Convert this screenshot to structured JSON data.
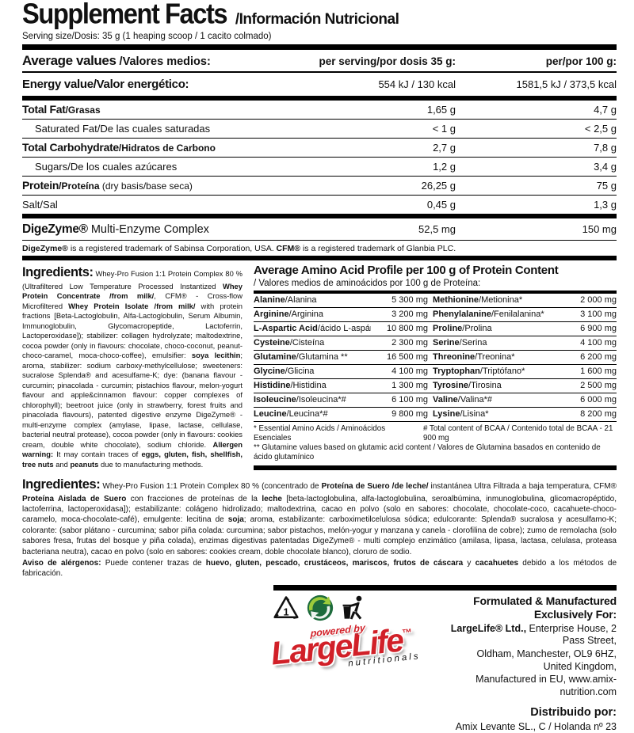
{
  "header": {
    "title": "Supplement Facts",
    "subtitle": "/Información Nutricional",
    "serving": "Serving size/Dosis: 35 g (1 heaping scoop / 1 cacito colmado)"
  },
  "nutrition": {
    "avg_en": "Average values",
    "avg_es": " /Valores medios:",
    "col_serving": "per serving/por dosis 35 g:",
    "col_per100": "per/por 100 g:",
    "energy": {
      "label": "Energy value/Valor energético:",
      "serv": "554 kJ / 130 kcal",
      "per100": "1581,5 kJ / 373,5 kcal"
    },
    "rows": [
      {
        "en": "Total Fat",
        "es": "/Grasas",
        "note": "",
        "serv": "1,65 g",
        "per100": "4,7 g",
        "bold": true,
        "indent": false
      },
      {
        "en": "Saturated Fat",
        "es": "/De las cuales saturadas",
        "note": "",
        "serv": "< 1 g",
        "per100": "< 2,5 g",
        "bold": false,
        "indent": true
      },
      {
        "en": "Total Carbohydrate",
        "es": "/Hidratos de Carbono",
        "note": "",
        "serv": "2,7 g",
        "per100": "7,8 g",
        "bold": true,
        "indent": false
      },
      {
        "en": "Sugars",
        "es": "/De los cuales azúcares",
        "note": "",
        "serv": "1,2 g",
        "per100": "3,4 g",
        "bold": false,
        "indent": true
      },
      {
        "en": "Protein",
        "es": "/Proteína",
        "note": " (dry basis/base seca)",
        "serv": "26,25 g",
        "per100": "75 g",
        "bold": true,
        "indent": false
      },
      {
        "en": "Salt",
        "es": "/Sal",
        "note": "",
        "serv": "0,45 g",
        "per100": "1,3 g",
        "bold": false,
        "indent": false
      }
    ],
    "digezyme": {
      "bold": "DigeZyme®",
      "rest": " Multi-Enzyme Complex",
      "serv": "52,5 mg",
      "per100": "150 mg"
    },
    "trademark_segments": [
      {
        "t": "DigeZyme®",
        "b": true
      },
      {
        "t": " is a registered trademark of Sabinsa Corporation, USA. ",
        "b": false
      },
      {
        "t": "CFM®",
        "b": true
      },
      {
        "t": " is a registered trademark of Glanbia PLC.",
        "b": false
      }
    ]
  },
  "ingredients_en": {
    "heading": "Ingredients:",
    "segments": [
      {
        "t": " Whey-Pro Fusion 1:1 Protein Complex 80 % (Ultrafiltered Low Temperature Processed Instantized ",
        "b": false
      },
      {
        "t": "Whey Protein Concentrate /from milk/",
        "b": true
      },
      {
        "t": ", CFM® - Cross-flow Microfiltered ",
        "b": false
      },
      {
        "t": "Whey Protein Isolate /from milk/",
        "b": true
      },
      {
        "t": " with protein fractions [Beta-Lactoglobulin, Alfa-Lactoglobulin, Serum Albumin, Immunoglobulin, Glycomacropeptide, Lactoferrin, Lactoperoxidase]); stabilizer: collagen hydrolyzate; maltodextrine, cocoa powder (only in flavours: chocolate, choco-coconut, peanut-choco-caramel, moca-choco-coffee), emulsifier: ",
        "b": false
      },
      {
        "t": "soya lecithin",
        "b": true
      },
      {
        "t": "; aroma, stabilizer: sodium carboxy-methylcellulose; sweeteners: sucralose Splenda® and acesulfame-K; dye: (banana flavour - curcumin; pinacolada - curcumin; pistachios flavour, melon-yogurt flavour and apple&cinnamon flavour: copper complexes of chlorophyll); beetroot juice (only in strawberry, forest fruits and pinacolada flavours), patented digestive enzyme DigeZyme® - multi-enzyme complex (amylase, lipase, lactase, cellulase, bacterial neutral protease), cocoa powder (only in flavours: cookies cream, double white chocolate), sodium chloride. ",
        "b": false
      },
      {
        "t": "Allergen warning:",
        "b": true
      },
      {
        "t": " It may contain traces of ",
        "b": false
      },
      {
        "t": "eggs, gluten, fish, shellfish, tree nuts",
        "b": true
      },
      {
        "t": " and ",
        "b": false
      },
      {
        "t": "peanuts",
        "b": true
      },
      {
        "t": " due to manufacturing methods.",
        "b": false
      }
    ]
  },
  "amino": {
    "title": "Average Amino Acid Profile per 100 g of Protein Content",
    "subtitle": "/ Valores medios de aminoácidos  por 100 g de Proteína:",
    "rows": [
      {
        "l_en": "Alanine",
        "l_es": "/Alanina",
        "l_val": "5 300 mg",
        "r_en": "Methionine",
        "r_es": "/Metionina*",
        "r_val": "2 000 mg"
      },
      {
        "l_en": "Arginine",
        "l_es": "/Arginina",
        "l_val": "3 200 mg",
        "r_en": "Phenylalanine",
        "r_es": "/Fenilalanina*",
        "r_val": "3 100 mg"
      },
      {
        "l_en": "L-Aspartic Acid",
        "l_es": "/ácido L-aspártico",
        "l_val": "10 800 mg",
        "r_en": "Proline",
        "r_es": "/Prolina",
        "r_val": "6 900 mg"
      },
      {
        "l_en": "Cysteine",
        "l_es": "/Cisteína",
        "l_val": "2 300 mg",
        "r_en": "Serine",
        "r_es": "/Serina",
        "r_val": "4 100 mg"
      },
      {
        "l_en": "Glutamine",
        "l_es": "/Glutamina **",
        "l_val": "16 500 mg",
        "r_en": "Threonine",
        "r_es": "/Treonina*",
        "r_val": "6 200 mg"
      },
      {
        "l_en": "Glycine",
        "l_es": "/Glicina",
        "l_val": "4 100 mg",
        "r_en": "Tryptophan",
        "r_es": "/Triptófano*",
        "r_val": "1 600 mg"
      },
      {
        "l_en": "Histidine",
        "l_es": "/Histidina",
        "l_val": "1 300 mg",
        "r_en": "Tyrosine",
        "r_es": "/Tirosina",
        "r_val": "2 500 mg"
      },
      {
        "l_en": "Isoleucine",
        "l_es": "/Isoleucina*#",
        "l_val": "6 100 mg",
        "r_en": "Valine",
        "r_es": "/Valina*#",
        "r_val": "6 000 mg"
      },
      {
        "l_en": "Leucine",
        "l_es": "/Leucina*#",
        "l_val": "9 800 mg",
        "r_en": "Lysine",
        "r_es": "/Lisina*",
        "r_val": "8 200 mg"
      }
    ],
    "foot1a": "* Essential Amino Acids / Aminoácidos Esenciales",
    "foot1b": "# Total content of BCAA / Contenido total de BCAA - 21 900 mg",
    "foot2": "** Glutamine values based on glutamic acid content / Valores de Glutamina basados en contenido de ácido glutamínico"
  },
  "ingredients_es": {
    "heading": "Ingredientes:",
    "segments": [
      {
        "t": " Whey-Pro Fusion 1:1 Protein Complex 80 % (concentrado de ",
        "b": false
      },
      {
        "t": "Proteína de Suero /de leche/",
        "b": true
      },
      {
        "t": " instantánea Ultra Filtrada a baja temperatura, CFM® ",
        "b": false
      },
      {
        "t": "Proteína Aislada de Suero",
        "b": true
      },
      {
        "t": " con fracciones de proteínas de la ",
        "b": false
      },
      {
        "t": "leche",
        "b": true
      },
      {
        "t": " [beta-lactoglobulina, alfa-lactoglobulina, seroalbúmina, inmunoglobulina, glicomacropéptido, lactoferrina, lactoperoxidasa]); estabilizante: colágeno hidrolizado; maltodextrina, cacao en polvo (solo en sabores: chocolate, chocolate-coco, cacahuete-choco-caramelo, moca-chocolate-café), emulgente: lecitina de ",
        "b": false
      },
      {
        "t": "soja",
        "b": true
      },
      {
        "t": "; aroma, estabilizante: carboximetilcelulosa sódica; edulcorante: Splenda® sucralosa y acesulfamo-K; colorante: (sabor plátano - curcumina; sabor piña colada: curcumina; sabor pistachos, melón-yogur y manzana y canela - clorofilina de cobre); zumo de remolacha (solo sabores fresa, frutas del bosque y piña colada), enzimas digestivas patentadas DigeZyme® - multi complejo enzimático (amilasa, lipasa, lactasa, celulasa, proteasa bacteriana neutra), cacao en polvo (solo en sabores: cookies cream, doble chocolate blanco), cloruro de sodio.",
        "b": false
      }
    ],
    "aviso_segments": [
      {
        "t": "Aviso de alérgenos:",
        "b": true
      },
      {
        "t": " Puede contener trazas de ",
        "b": false
      },
      {
        "t": "huevo, gluten, pescado, crustáceos, mariscos, frutos de cáscara",
        "b": true
      },
      {
        "t": " y ",
        "b": false
      },
      {
        "t": "cacahuetes",
        "b": true
      },
      {
        "t": " debido a los métodos de fabricación.",
        "b": false
      }
    ]
  },
  "footer": {
    "formulated_title": "Formulated & Manufactured Exclusively For:",
    "addr1_bold": "LargeLife® Ltd.,",
    "addr1_rest": " Enterprise House, 2 Pass Street,",
    "addr2": "Oldham, Manchester, OL9 6HZ, United Kingdom,",
    "addr3": "Manufactured in EU, www.amix-nutrition.com",
    "distribuido": "Distribuido por:",
    "dist_addr": "Amix Levante SL., C / Holanda nº 23",
    "logo": {
      "powered": "powered by",
      "brand": "LargeLife",
      "tm": "™",
      "sub": "nutritionals"
    },
    "icons": {
      "recycle_code": "1",
      "recycle_icon": "resin-code-1-triangle",
      "green_dot_icon": "green-dot-recycling",
      "tidyman_icon": "tidyman-dispose"
    }
  },
  "colors": {
    "accent_red": "#d12028",
    "green_dark": "#1d6b3c",
    "green_light": "#9ccb3b",
    "ink": "#111111"
  }
}
